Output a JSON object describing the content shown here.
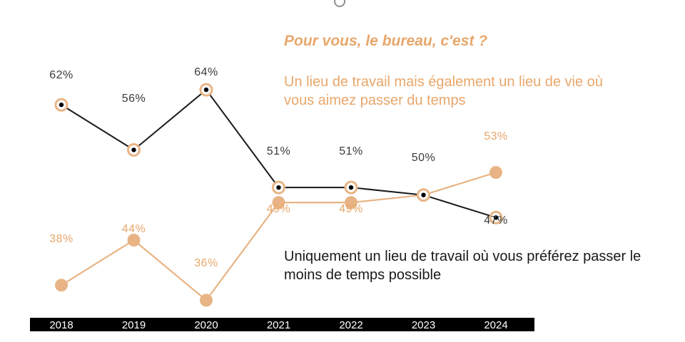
{
  "chart_data": {
    "type": "line",
    "title": "Pour vous, le bureau, c'est ?",
    "categories": [
      "2018",
      "2019",
      "2020",
      "2021",
      "2022",
      "2023",
      "2024"
    ],
    "series": [
      {
        "name": "Un lieu de travail mais également un lieu de vie où vous aimez passer du temps",
        "values": [
          38,
          44,
          36,
          49,
          49,
          50,
          53
        ],
        "labels": [
          "38%",
          "44%",
          "36%",
          "49%",
          "49%",
          "",
          "53%"
        ],
        "color": "#e8b485"
      },
      {
        "name": "Uniquement un lieu de travail où vous préférez passer le moins de temps possible",
        "values": [
          62,
          56,
          64,
          51,
          51,
          50,
          47
        ],
        "labels": [
          "62%",
          "56%",
          "64%",
          "51%",
          "51%",
          "50%",
          "47%"
        ],
        "color": "#1a1a1a"
      }
    ],
    "grid": false,
    "legend": "inline text labels"
  },
  "colors": {
    "accent": "#e8a76b",
    "dark": "#1a1a1a",
    "marker_fill": "#e8b485",
    "axis_bar": "#000000"
  }
}
